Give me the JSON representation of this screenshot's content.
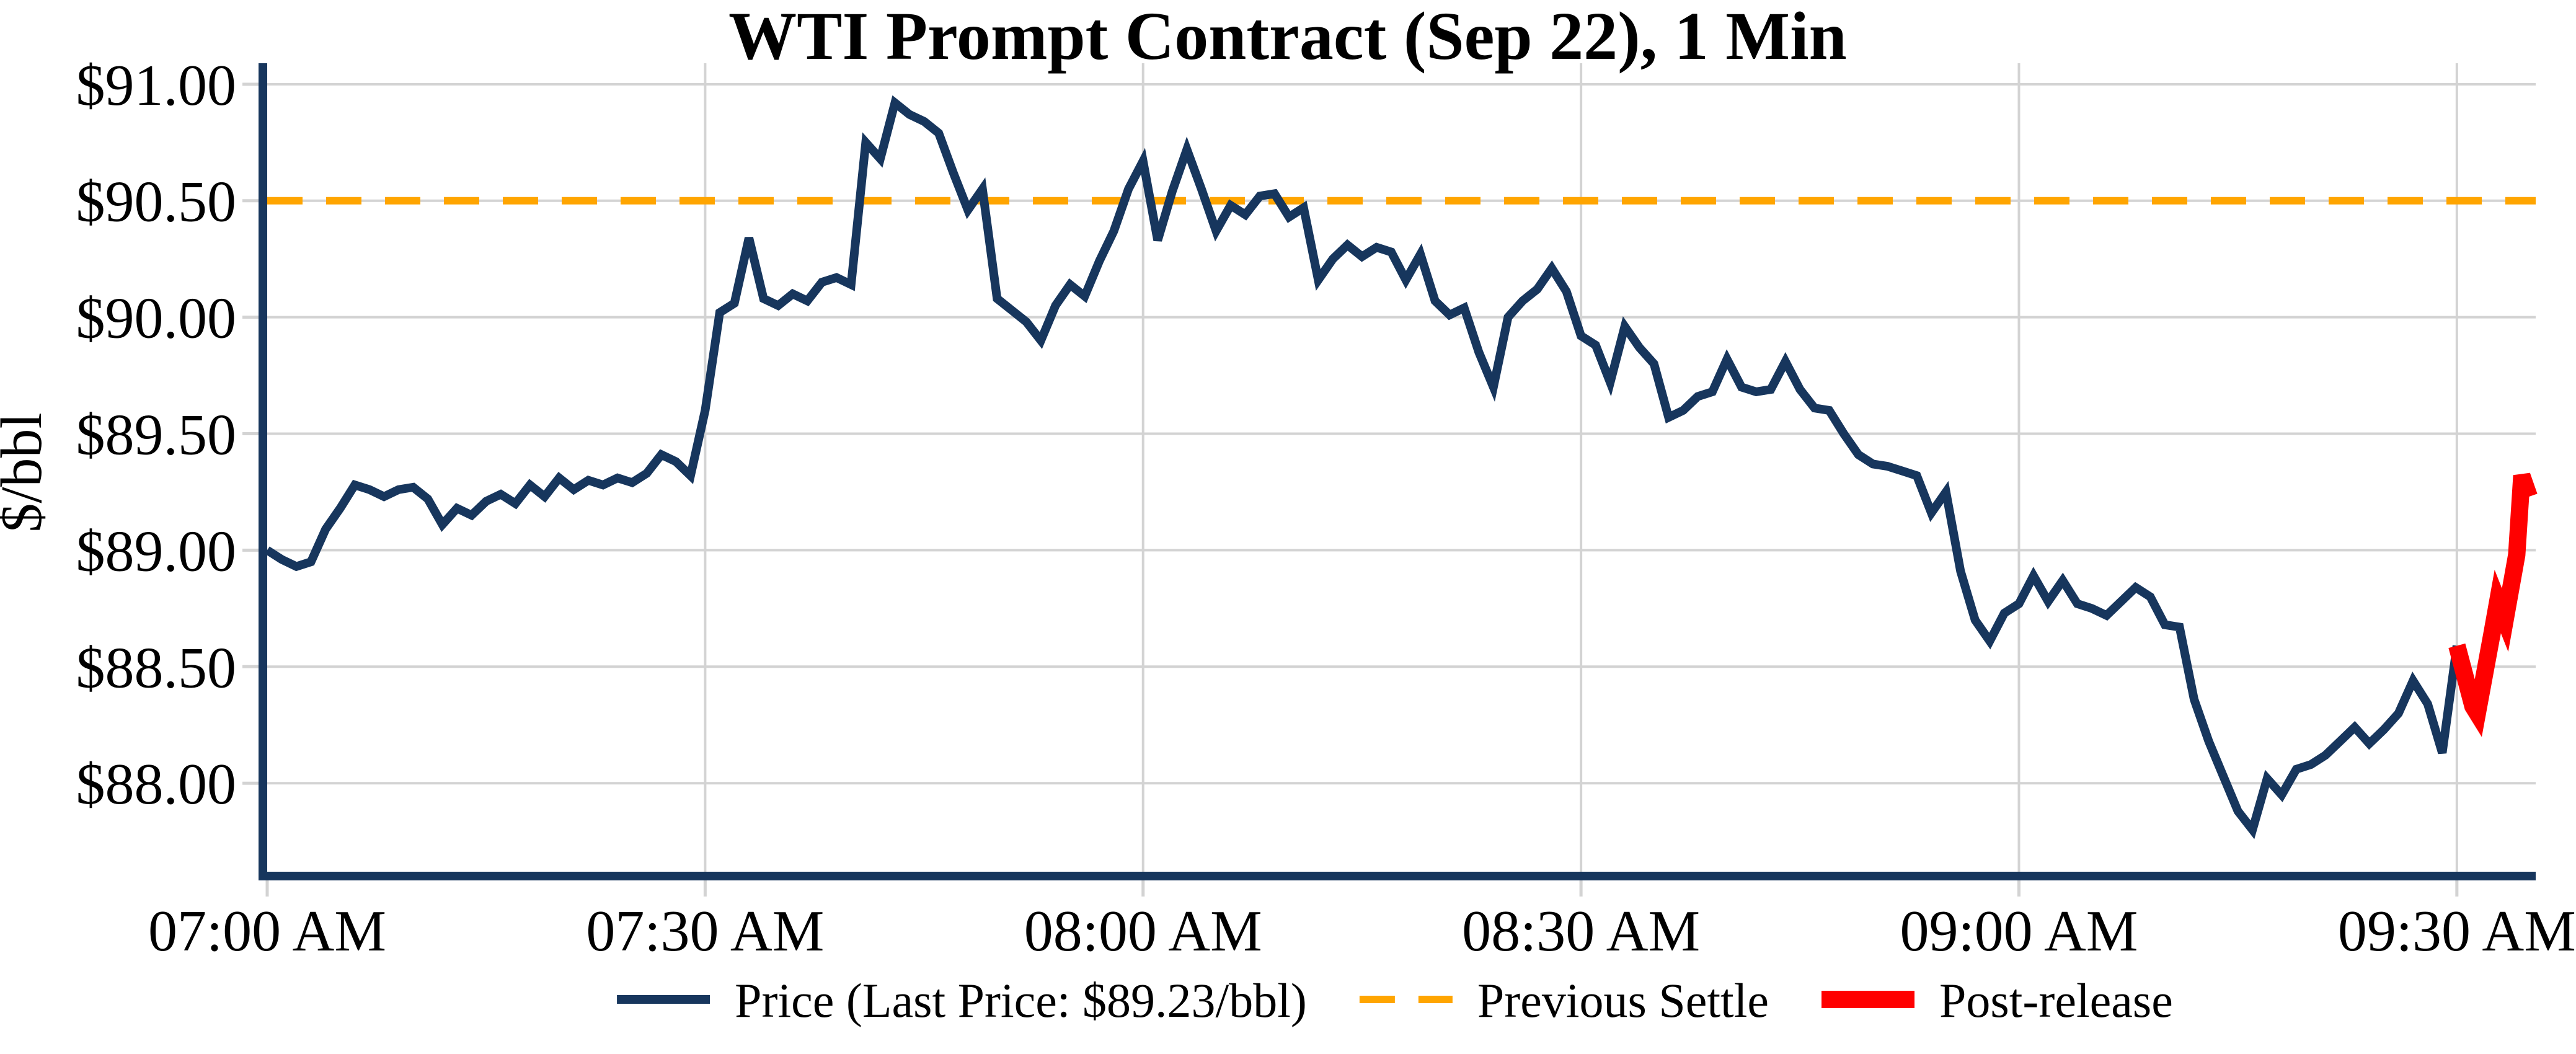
{
  "title": "WTI Prompt Contract (Sep 22), 1 Min",
  "ylabel": "$/bbl",
  "legend": {
    "price_label": "Price (Last Price: $89.23/bbl)",
    "settle_label": "Previous Settle",
    "post_label": "Post-release"
  },
  "colors": {
    "price": "#17365D",
    "settle": "#FFA500",
    "post": "#FF0000",
    "grid": "#D3D3D3",
    "text": "#000000"
  },
  "chart_data": {
    "type": "line",
    "title": "WTI Prompt Contract (Sep 22), 1 Min",
    "xlabel": "",
    "ylabel": "$/bbl",
    "grid": true,
    "legend_position": "bottom-center",
    "ylim": [
      87.62,
      91.09
    ],
    "xlim_minutes_after_midnight": [
      420,
      575.4
    ],
    "y_ticks": [
      {
        "label": "$88.00",
        "value": 88.0
      },
      {
        "label": "$88.50",
        "value": 88.5
      },
      {
        "label": "$89.00",
        "value": 89.0
      },
      {
        "label": "$89.50",
        "value": 89.5
      },
      {
        "label": "$90.00",
        "value": 90.0
      },
      {
        "label": "$90.50",
        "value": 90.5
      },
      {
        "label": "$91.00",
        "value": 91.0
      }
    ],
    "x_ticks": [
      {
        "label": "07:00 AM",
        "minute": 420
      },
      {
        "label": "07:30 AM",
        "minute": 450
      },
      {
        "label": "08:00 AM",
        "minute": 480
      },
      {
        "label": "08:30 AM",
        "minute": 510
      },
      {
        "label": "09:00 AM",
        "minute": 540
      },
      {
        "label": "09:30 AM",
        "minute": 570
      }
    ],
    "previous_settle": 90.5,
    "last_price": 89.23,
    "series": [
      {
        "name": "Price (Last Price: $89.23/bbl)",
        "kind": "price",
        "start_minute": 420,
        "step_minutes": 1,
        "values": [
          89.0,
          88.96,
          88.93,
          88.95,
          89.09,
          89.18,
          89.28,
          89.26,
          89.23,
          89.26,
          89.27,
          89.22,
          89.11,
          89.18,
          89.15,
          89.21,
          89.24,
          89.2,
          89.28,
          89.23,
          89.31,
          89.26,
          89.3,
          89.28,
          89.31,
          89.29,
          89.33,
          89.41,
          89.38,
          89.32,
          89.6,
          90.02,
          90.06,
          90.34,
          90.08,
          90.05,
          90.1,
          90.07,
          90.15,
          90.17,
          90.14,
          90.75,
          90.68,
          90.92,
          90.87,
          90.84,
          90.79,
          90.62,
          90.46,
          90.55,
          90.08,
          90.03,
          89.98,
          89.9,
          90.05,
          90.14,
          90.09,
          90.24,
          90.37,
          90.55,
          90.67,
          90.33,
          90.54,
          90.72,
          90.55,
          90.37,
          90.48,
          90.44,
          90.52,
          90.53,
          90.43,
          90.47,
          90.16,
          90.25,
          90.31,
          90.26,
          90.3,
          90.28,
          90.16,
          90.27,
          90.07,
          90.01,
          90.04,
          89.85,
          89.7,
          90.0,
          90.07,
          90.12,
          90.21,
          90.11,
          89.92,
          89.88,
          89.72,
          89.96,
          89.87,
          89.8,
          89.57,
          89.6,
          89.66,
          89.68,
          89.82,
          89.7,
          89.68,
          89.69,
          89.81,
          89.69,
          89.61,
          89.6,
          89.5,
          89.41,
          89.37,
          89.36,
          89.34,
          89.32,
          89.16,
          89.25,
          88.91,
          88.7,
          88.61,
          88.73,
          88.77,
          88.89,
          88.78,
          88.87,
          88.77,
          88.75,
          88.72,
          88.78,
          88.84,
          88.8,
          88.68,
          88.67,
          88.36,
          88.18,
          88.03,
          87.88,
          87.8,
          88.02,
          87.95,
          88.06,
          88.08,
          88.12,
          88.18,
          88.24,
          88.17,
          88.23,
          88.3,
          88.44,
          88.34,
          88.13,
          88.59
        ]
      },
      {
        "name": "Previous Settle",
        "kind": "settle",
        "value": 90.5
      },
      {
        "name": "Post-release",
        "kind": "post",
        "points": [
          {
            "t": 570.0,
            "v": 88.59
          },
          {
            "t": 571.1,
            "v": 88.33
          },
          {
            "t": 571.4,
            "v": 88.3
          },
          {
            "t": 572.4,
            "v": 88.64
          },
          {
            "t": 572.8,
            "v": 88.78
          },
          {
            "t": 573.3,
            "v": 88.7
          },
          {
            "t": 574.1,
            "v": 88.98
          },
          {
            "t": 574.45,
            "v": 89.32
          },
          {
            "t": 574.95,
            "v": 89.23
          }
        ]
      }
    ]
  }
}
